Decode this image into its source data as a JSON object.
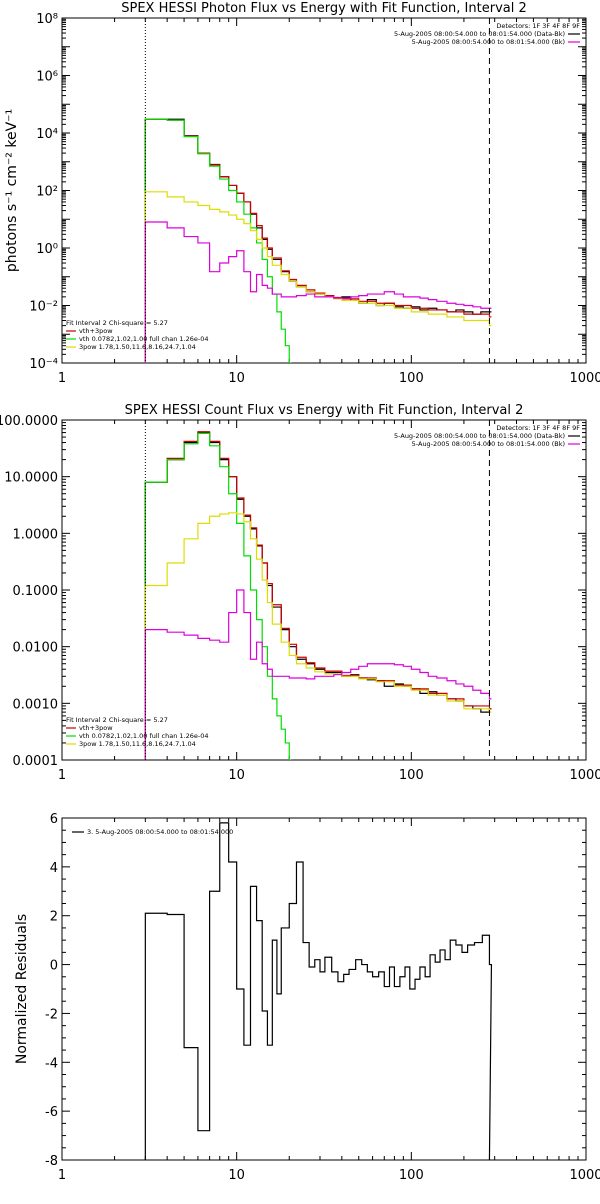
{
  "colors": {
    "total": "#000000",
    "vth_plus_3pow": "#cc0000",
    "vth": "#00dd00",
    "pow": "#dddd00",
    "bkg": "#dd00dd",
    "data": "#000000"
  },
  "chart_data": [
    {
      "type": "line",
      "title": "SPEX HESSI Photon Flux vs Energy with Fit Function, Interval 2",
      "xlabel": "",
      "ylabel": "photons s⁻¹ cm⁻² keV⁻¹",
      "xscale": "log",
      "yscale": "log",
      "xlim": [
        1,
        1000
      ],
      "ylim": [
        0.0001,
        100000000
      ],
      "xticks": [
        1,
        10,
        100,
        1000
      ],
      "xtick_labels": [
        "1",
        "10",
        "100",
        "1000"
      ],
      "yticks": [
        0.0001,
        0.01,
        1,
        100,
        10000,
        1000000,
        100000000
      ],
      "ytick_labels": [
        "10⁻⁴",
        "10⁻²",
        "10⁰",
        "10²",
        "10⁴",
        "10⁶",
        "10⁸"
      ],
      "vlines": [
        {
          "x": 3,
          "style": "dotted"
        },
        {
          "x": 280,
          "style": "dashed"
        }
      ],
      "legend_topright": [
        "Detectors: 1F 3F 4F 8F 9F",
        "5-Aug-2005 08:00:54.000 to 08:01:54.000 (Data-Bk)",
        "5-Aug-2005 08:00:54.000 to 08:01:54.000 (Bk)"
      ],
      "legend_bottomleft": [
        "Fit Interval 2   Chi-square = 5.27",
        "vth+3pow",
        "vth 0.0782,1.02,1.00  full chan 1.26e-04",
        "3pow 1.78,1.50,11.6,8.16,24.7,1.04"
      ],
      "series": [
        {
          "name": "5-Aug-2005 08:00:54.000 to 08:01:54.000 (Data-Bk)",
          "color": "#000000",
          "x": [
            3,
            4,
            5,
            6,
            7,
            8,
            9,
            10,
            11,
            12,
            13,
            14,
            15,
            16,
            18,
            20,
            22,
            25,
            28,
            32,
            36,
            40,
            45,
            50,
            56,
            63,
            70,
            80,
            90,
            100,
            112,
            125,
            140,
            160,
            180,
            200,
            225,
            250,
            280
          ],
          "y": [
            30000,
            30000,
            8000,
            2000,
            800,
            300,
            150,
            80,
            40,
            15,
            5,
            2,
            0.9,
            0.4,
            0.15,
            0.07,
            0.045,
            0.03,
            0.025,
            0.02,
            0.018,
            0.02,
            0.015,
            0.012,
            0.016,
            0.01,
            0.012,
            0.009,
            0.008,
            0.009,
            0.007,
            0.008,
            0.007,
            0.006,
            0.007,
            0.006,
            0.005,
            0.006,
            0.006
          ]
        },
        {
          "name": "vth+3pow",
          "color": "#cc0000",
          "x": [
            3,
            4,
            5,
            6,
            7,
            8,
            9,
            10,
            11,
            12,
            13,
            14,
            15,
            16,
            18,
            20,
            22,
            25,
            28,
            32,
            36,
            40,
            50,
            63,
            80,
            100,
            125,
            160,
            200,
            280
          ],
          "y": [
            30000,
            28000,
            7800,
            2000,
            780,
            300,
            150,
            80,
            40,
            16,
            6,
            2.2,
            1.0,
            0.45,
            0.16,
            0.08,
            0.05,
            0.035,
            0.027,
            0.022,
            0.019,
            0.017,
            0.014,
            0.012,
            0.01,
            0.008,
            0.007,
            0.006,
            0.005,
            0.004
          ]
        },
        {
          "name": "vth 0.0782,1.02,1.00  full chan 1.26e-04",
          "color": "#00dd00",
          "x": [
            3,
            4,
            5,
            6,
            7,
            8,
            9,
            10,
            11,
            12,
            13,
            14,
            15,
            16,
            17,
            18,
            19,
            20
          ],
          "y": [
            30000,
            28000,
            7500,
            1900,
            700,
            250,
            100,
            40,
            15,
            5,
            1.5,
            0.4,
            0.1,
            0.025,
            0.006,
            0.0015,
            0.0004,
            0.0001
          ]
        },
        {
          "name": "3pow 1.78,1.50,11.6,8.16,24.7,1.04",
          "color": "#dddd00",
          "x": [
            3,
            4,
            5,
            6,
            7,
            8,
            9,
            10,
            11,
            12,
            13,
            14,
            15,
            16,
            18,
            20,
            22,
            25,
            28,
            32,
            36,
            40,
            50,
            63,
            80,
            100,
            125,
            160,
            200,
            280
          ],
          "y": [
            90,
            60,
            40,
            30,
            22,
            18,
            14,
            10,
            7,
            4,
            2,
            1,
            0.5,
            0.25,
            0.12,
            0.07,
            0.045,
            0.03,
            0.025,
            0.02,
            0.017,
            0.015,
            0.012,
            0.01,
            0.008,
            0.006,
            0.005,
            0.004,
            0.003,
            0.002
          ]
        },
        {
          "name": "5-Aug-2005 08:00:54.000 to 08:01:54.000 (Bk)",
          "color": "#dd00dd",
          "x": [
            3,
            4,
            5,
            6,
            7,
            8,
            9,
            10,
            11,
            12,
            13,
            14,
            15,
            16,
            18,
            20,
            22,
            25,
            28,
            32,
            36,
            40,
            45,
            50,
            56,
            63,
            70,
            80,
            90,
            100,
            112,
            125,
            140,
            160,
            180,
            200,
            225,
            250,
            280
          ],
          "y": [
            8,
            5,
            2.5,
            1.5,
            0.15,
            0.3,
            0.5,
            0.8,
            0.15,
            0.03,
            0.12,
            0.05,
            0.04,
            0.025,
            0.02,
            0.02,
            0.022,
            0.025,
            0.02,
            0.02,
            0.018,
            0.018,
            0.02,
            0.022,
            0.025,
            0.025,
            0.03,
            0.025,
            0.02,
            0.02,
            0.018,
            0.016,
            0.014,
            0.012,
            0.011,
            0.01,
            0.009,
            0.008,
            0.008
          ]
        }
      ]
    },
    {
      "type": "line",
      "title": "SPEX HESSI Count Flux vs Energy with Fit Function, Interval 2",
      "xlabel": "",
      "ylabel": "",
      "xscale": "log",
      "yscale": "log",
      "xlim": [
        1,
        1000
      ],
      "ylim": [
        0.0001,
        100
      ],
      "xticks": [
        1,
        10,
        100,
        1000
      ],
      "xtick_labels": [
        "1",
        "10",
        "100",
        "1000"
      ],
      "yticks": [
        0.0001,
        0.001,
        0.01,
        0.1,
        1,
        10,
        100
      ],
      "ytick_labels": [
        "0.0001",
        "0.0010",
        "0.0100",
        "0.1000",
        "1.0000",
        "10.0000",
        "100.0000"
      ],
      "vlines": [
        {
          "x": 3,
          "style": "dotted"
        },
        {
          "x": 280,
          "style": "dashed"
        }
      ],
      "legend_topright": [
        "Detectors: 1F 3F 4F 8F 9F",
        "5-Aug-2005 08:00:54.000 to 08:01:54.000 (Data-Bk)",
        "5-Aug-2005 08:00:54.000 to 08:01:54.000 (Bk)"
      ],
      "legend_bottomleft": [
        "Fit Interval 2   Chi-square = 5.27",
        "vth+3pow",
        "vth 0.0782,1.02,1.00  full chan 1.26e-04",
        "3pow 1.78,1.50,11.6,8.16,24.7,1.04"
      ],
      "series": [
        {
          "name": "5-Aug-2005 08:00:54.000 to 08:01:54.000 (Data-Bk)",
          "color": "#000000",
          "x": [
            3,
            4,
            5,
            6,
            7,
            8,
            9,
            10,
            11,
            12,
            13,
            14,
            15,
            16,
            18,
            20,
            22,
            25,
            28,
            32,
            36,
            40,
            45,
            50,
            56,
            63,
            70,
            80,
            90,
            100,
            112,
            125,
            140,
            160,
            180,
            200,
            225,
            250,
            280
          ],
          "y": [
            8,
            20,
            40,
            60,
            40,
            20,
            10,
            4,
            2,
            1.2,
            0.6,
            0.3,
            0.12,
            0.05,
            0.02,
            0.01,
            0.006,
            0.005,
            0.004,
            0.0035,
            0.0035,
            0.003,
            0.0032,
            0.0028,
            0.0026,
            0.0025,
            0.002,
            0.0022,
            0.002,
            0.0018,
            0.0015,
            0.0016,
            0.0014,
            0.0012,
            0.0011,
            0.0009,
            0.0008,
            0.0007,
            0.0008
          ]
        },
        {
          "name": "vth+3pow",
          "color": "#cc0000",
          "x": [
            3,
            4,
            5,
            6,
            7,
            8,
            9,
            10,
            11,
            12,
            13,
            14,
            15,
            16,
            18,
            20,
            22,
            25,
            28,
            32,
            40,
            50,
            63,
            80,
            100,
            125,
            160,
            200,
            280
          ],
          "y": [
            8,
            21,
            42,
            62,
            42,
            21,
            10,
            4.2,
            2.1,
            1.25,
            0.62,
            0.3,
            0.13,
            0.055,
            0.021,
            0.011,
            0.0065,
            0.0052,
            0.0042,
            0.0037,
            0.0031,
            0.0028,
            0.0025,
            0.0021,
            0.0018,
            0.0015,
            0.0012,
            0.0009,
            0.0008
          ]
        },
        {
          "name": "vth 0.0782,1.02,1.00  full chan 1.26e-04",
          "color": "#00dd00",
          "x": [
            3,
            4,
            5,
            6,
            7,
            8,
            9,
            10,
            11,
            12,
            13,
            14,
            15,
            16,
            17,
            18,
            19,
            20
          ],
          "y": [
            8,
            20,
            38,
            58,
            35,
            15,
            5,
            1.5,
            0.4,
            0.1,
            0.03,
            0.01,
            0.003,
            0.0012,
            0.0006,
            0.00035,
            0.0002,
            0.0001
          ]
        },
        {
          "name": "3pow 1.78,1.50,11.6,8.16,24.7,1.04",
          "color": "#dddd00",
          "x": [
            3,
            4,
            5,
            6,
            7,
            8,
            9,
            10,
            11,
            12,
            13,
            14,
            15,
            16,
            18,
            20,
            22,
            25,
            28,
            32,
            40,
            50,
            63,
            80,
            100,
            125,
            160,
            200,
            280
          ],
          "y": [
            0.12,
            0.3,
            0.8,
            1.5,
            2.0,
            2.2,
            2.3,
            2.2,
            1.6,
            0.8,
            0.35,
            0.15,
            0.06,
            0.025,
            0.012,
            0.007,
            0.005,
            0.0042,
            0.0036,
            0.0033,
            0.003,
            0.0027,
            0.0024,
            0.002,
            0.0017,
            0.0014,
            0.0011,
            0.0008,
            0.0007
          ]
        },
        {
          "name": "5-Aug-2005 08:00:54.000 to 08:01:54.000 (Bk)",
          "color": "#dd00dd",
          "x": [
            3,
            4,
            5,
            6,
            7,
            8,
            9,
            10,
            11,
            12,
            13,
            14,
            15,
            16,
            18,
            20,
            22,
            25,
            28,
            32,
            36,
            40,
            45,
            50,
            56,
            63,
            70,
            80,
            90,
            100,
            112,
            125,
            140,
            160,
            180,
            200,
            225,
            250,
            280
          ],
          "y": [
            0.02,
            0.018,
            0.016,
            0.014,
            0.013,
            0.012,
            0.04,
            0.1,
            0.04,
            0.006,
            0.012,
            0.005,
            0.004,
            0.003,
            0.003,
            0.0028,
            0.0028,
            0.0027,
            0.003,
            0.003,
            0.0032,
            0.0035,
            0.004,
            0.0045,
            0.005,
            0.005,
            0.005,
            0.0048,
            0.0045,
            0.004,
            0.0035,
            0.003,
            0.0028,
            0.0025,
            0.0022,
            0.002,
            0.0017,
            0.0015,
            0.0012
          ]
        }
      ]
    },
    {
      "type": "line",
      "title": "",
      "xlabel": "",
      "ylabel": "Normalized Residuals",
      "xscale": "log",
      "yscale": "linear",
      "xlim": [
        1,
        1000
      ],
      "ylim": [
        -8,
        6
      ],
      "xticks": [
        1,
        10,
        100,
        1000
      ],
      "xtick_labels": [
        "1",
        "10",
        "100",
        "1000"
      ],
      "yticks": [
        -8,
        -6,
        -4,
        -2,
        0,
        2,
        4,
        6
      ],
      "ytick_labels": [
        "-8",
        "-6",
        "-4",
        "-2",
        "0",
        "2",
        "4",
        "6"
      ],
      "legend": "3. 5-Aug-2005 08:00:54.000 to 08:01:54.000",
      "series": [
        {
          "name": "3. 5-Aug-2005 08:00:54.000 to 08:01:54.000",
          "color": "#000000",
          "x": [
            3,
            4,
            5,
            6,
            7,
            8,
            9,
            10,
            11,
            12,
            13,
            14,
            15,
            16,
            17,
            18,
            20,
            22,
            24,
            26,
            28,
            30,
            32,
            35,
            38,
            41,
            44,
            48,
            52,
            56,
            60,
            65,
            70,
            75,
            80,
            86,
            92,
            98,
            105,
            112,
            120,
            128,
            137,
            146,
            156,
            167,
            180,
            195,
            210,
            230,
            255,
            280
          ],
          "y": [
            2.1,
            2.05,
            -3.4,
            -6.8,
            3.0,
            5.8,
            4.2,
            -1.0,
            -3.3,
            3.2,
            1.8,
            -1.9,
            -3.3,
            1.0,
            -1.2,
            1.5,
            2.5,
            4.2,
            0.9,
            -0.1,
            0.2,
            -0.3,
            0.3,
            -0.3,
            -0.7,
            -0.4,
            -0.2,
            0.2,
            0.0,
            -0.3,
            -0.5,
            -0.3,
            -0.9,
            -0.1,
            -0.9,
            -0.5,
            -0.1,
            -1.0,
            -0.6,
            -0.1,
            -0.5,
            0.4,
            0.1,
            0.6,
            0.2,
            1.0,
            0.8,
            0.5,
            0.8,
            0.9,
            1.2,
            0.0
          ]
        }
      ]
    }
  ]
}
